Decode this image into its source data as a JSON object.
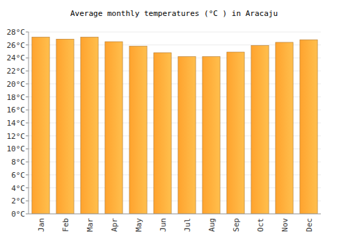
{
  "chart_data": {
    "type": "bar",
    "title": "Average monthly temperatures (°C ) in Aracaju",
    "categories": [
      "Jan",
      "Feb",
      "Mar",
      "Apr",
      "May",
      "Jun",
      "Jul",
      "Aug",
      "Sep",
      "Oct",
      "Nov",
      "Dec"
    ],
    "values": [
      27.2,
      26.9,
      27.2,
      26.5,
      25.8,
      24.8,
      24.2,
      24.2,
      24.9,
      25.9,
      26.4,
      26.8
    ],
    "color": "#ffa32e",
    "ylim": [
      0,
      28
    ],
    "yticks": [
      {
        "value": 0,
        "label": "0°C"
      },
      {
        "value": 2,
        "label": "2°C"
      },
      {
        "value": 4,
        "label": "4°C"
      },
      {
        "value": 6,
        "label": "6°C"
      },
      {
        "value": 8,
        "label": "8°C"
      },
      {
        "value": 10,
        "label": "10°C"
      },
      {
        "value": 12,
        "label": "12°C"
      },
      {
        "value": 14,
        "label": "14°C"
      },
      {
        "value": 16,
        "label": "16°C"
      },
      {
        "value": 18,
        "label": "18°C"
      },
      {
        "value": 20,
        "label": "20°C"
      },
      {
        "value": 22,
        "label": "22°C"
      },
      {
        "value": 24,
        "label": "24°C"
      },
      {
        "value": 26,
        "label": "26°C"
      },
      {
        "value": 28,
        "label": "28°C"
      }
    ],
    "grid": true
  }
}
